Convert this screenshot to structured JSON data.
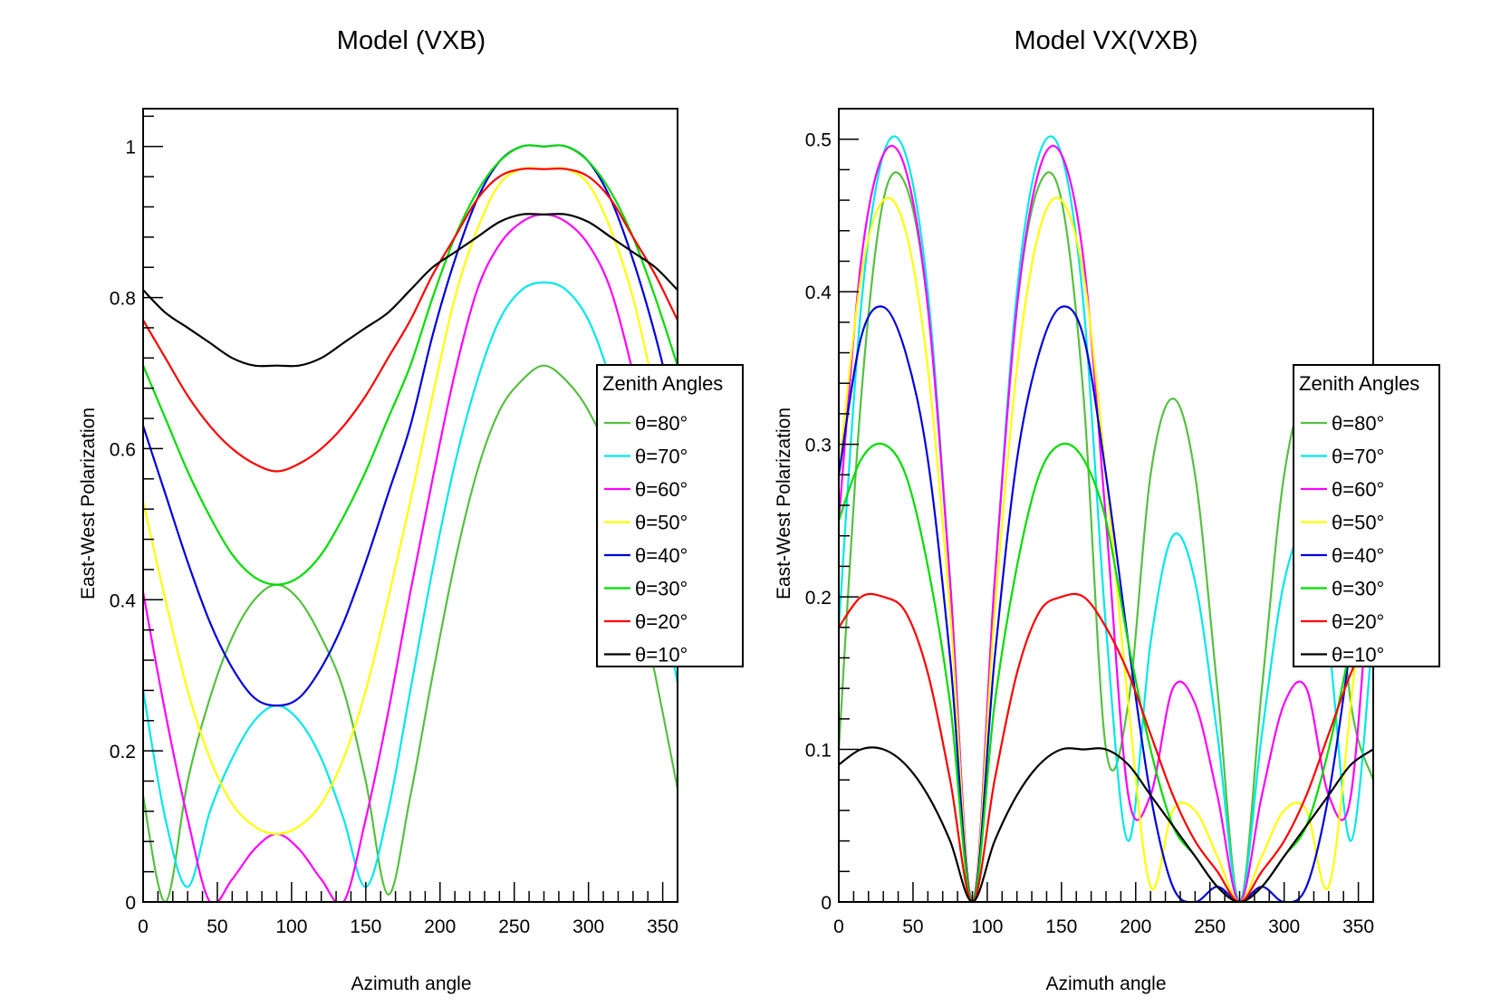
{
  "chart_data": [
    {
      "type": "line",
      "title": "Model (VXB)",
      "xlabel": "Azimuth angle",
      "ylabel": "East-West Polarization",
      "xlim": [
        0,
        360
      ],
      "ylim": [
        0,
        1.05
      ],
      "x_ticks": [
        0,
        50,
        100,
        150,
        200,
        250,
        300,
        350
      ],
      "x_tick_labels": [
        "0",
        "50",
        "100",
        "150",
        "200",
        "250",
        "300",
        "350"
      ],
      "y_ticks": [
        0,
        0.2,
        0.4,
        0.6,
        0.8,
        1.0
      ],
      "y_tick_labels": [
        "0",
        "0.2",
        "0.4",
        "0.6",
        "0.8",
        "1"
      ],
      "grid": false,
      "legend": {
        "title": "Zenith Angles",
        "placement": "right",
        "entries": [
          "θ=80°",
          "θ=70°",
          "θ=60°",
          "θ=50°",
          "θ=40°",
          "θ=30°",
          "θ=20°",
          "θ=10°"
        ]
      },
      "x": [
        0,
        15,
        30,
        45,
        60,
        75,
        90,
        105,
        120,
        135,
        150,
        165,
        180,
        195,
        210,
        225,
        240,
        255,
        270,
        285,
        300,
        315,
        330,
        345,
        360
      ],
      "series": [
        {
          "name": "θ=80°",
          "color": "#55c040",
          "values": [
            0.14,
            0.0,
            0.16,
            0.27,
            0.35,
            0.4,
            0.42,
            0.4,
            0.35,
            0.28,
            0.16,
            0.01,
            0.14,
            0.3,
            0.45,
            0.57,
            0.65,
            0.69,
            0.71,
            0.69,
            0.65,
            0.58,
            0.44,
            0.3,
            0.15
          ]
        },
        {
          "name": "θ=70°",
          "color": "#00e8e8",
          "values": [
            0.28,
            0.11,
            0.02,
            0.12,
            0.19,
            0.24,
            0.26,
            0.24,
            0.19,
            0.11,
            0.02,
            0.12,
            0.28,
            0.44,
            0.58,
            0.69,
            0.77,
            0.81,
            0.82,
            0.81,
            0.77,
            0.69,
            0.58,
            0.44,
            0.29
          ]
        },
        {
          "name": "θ=60°",
          "color": "#ff00ff",
          "values": [
            0.41,
            0.25,
            0.11,
            0.0,
            0.03,
            0.07,
            0.09,
            0.07,
            0.03,
            0.0,
            0.11,
            0.25,
            0.41,
            0.56,
            0.7,
            0.81,
            0.87,
            0.9,
            0.91,
            0.9,
            0.87,
            0.81,
            0.7,
            0.56,
            0.41
          ]
        },
        {
          "name": "θ=50°",
          "color": "#ffff00",
          "values": [
            0.53,
            0.4,
            0.28,
            0.19,
            0.13,
            0.1,
            0.09,
            0.1,
            0.13,
            0.19,
            0.28,
            0.4,
            0.53,
            0.67,
            0.8,
            0.89,
            0.95,
            0.97,
            0.97,
            0.97,
            0.95,
            0.89,
            0.8,
            0.67,
            0.53
          ]
        },
        {
          "name": "θ=40°",
          "color": "#0000dd",
          "values": [
            0.63,
            0.54,
            0.45,
            0.37,
            0.31,
            0.27,
            0.26,
            0.27,
            0.31,
            0.37,
            0.45,
            0.54,
            0.63,
            0.75,
            0.85,
            0.93,
            0.98,
            1.0,
            1.0,
            1.0,
            0.98,
            0.93,
            0.85,
            0.75,
            0.63
          ]
        },
        {
          "name": "θ=30°",
          "color": "#00dd00",
          "values": [
            0.71,
            0.64,
            0.57,
            0.51,
            0.46,
            0.43,
            0.42,
            0.43,
            0.46,
            0.51,
            0.57,
            0.64,
            0.71,
            0.8,
            0.88,
            0.94,
            0.98,
            1.0,
            1.0,
            1.0,
            0.98,
            0.94,
            0.88,
            0.8,
            0.71
          ]
        },
        {
          "name": "θ=20°",
          "color": "#ff0000",
          "values": [
            0.77,
            0.72,
            0.67,
            0.63,
            0.6,
            0.58,
            0.57,
            0.58,
            0.6,
            0.63,
            0.67,
            0.72,
            0.77,
            0.83,
            0.88,
            0.93,
            0.96,
            0.97,
            0.97,
            0.97,
            0.96,
            0.93,
            0.88,
            0.83,
            0.77
          ]
        },
        {
          "name": "θ=10°",
          "color": "#000000",
          "values": [
            0.81,
            0.78,
            0.76,
            0.74,
            0.72,
            0.71,
            0.71,
            0.71,
            0.72,
            0.74,
            0.76,
            0.78,
            0.81,
            0.84,
            0.86,
            0.88,
            0.9,
            0.91,
            0.91,
            0.91,
            0.9,
            0.88,
            0.86,
            0.84,
            0.81
          ]
        }
      ]
    },
    {
      "type": "line",
      "title": "Model VX(VXB)",
      "xlabel": "Azimuth angle",
      "ylabel": "East-West Polarization",
      "xlim": [
        0,
        360
      ],
      "ylim": [
        0,
        0.52
      ],
      "x_ticks": [
        0,
        50,
        100,
        150,
        200,
        250,
        300,
        350
      ],
      "x_tick_labels": [
        "0",
        "50",
        "100",
        "150",
        "200",
        "250",
        "300",
        "350"
      ],
      "y_ticks": [
        0,
        0.1,
        0.2,
        0.3,
        0.4,
        0.5
      ],
      "y_tick_labels": [
        "0",
        "0.1",
        "0.2",
        "0.3",
        "0.4",
        "0.5"
      ],
      "grid": false,
      "legend": {
        "title": "Zenith Angles",
        "placement": "right",
        "entries": [
          "θ=80°",
          "θ=70°",
          "θ=60°",
          "θ=50°",
          "θ=40°",
          "θ=30°",
          "θ=20°",
          "θ=10°"
        ]
      },
      "x": [
        0,
        15,
        30,
        45,
        60,
        75,
        90,
        105,
        120,
        135,
        150,
        165,
        180,
        195,
        210,
        225,
        240,
        255,
        270,
        285,
        300,
        315,
        330,
        345,
        360
      ],
      "series": [
        {
          "name": "θ=80°",
          "color": "#55c040",
          "values": [
            0.1,
            0.33,
            0.46,
            0.47,
            0.39,
            0.21,
            0.0,
            0.21,
            0.39,
            0.47,
            0.46,
            0.33,
            0.1,
            0.13,
            0.28,
            0.33,
            0.28,
            0.14,
            0.0,
            0.14,
            0.28,
            0.33,
            0.28,
            0.13,
            0.08
          ]
        },
        {
          "name": "θ=70°",
          "color": "#00e8e8",
          "values": [
            0.18,
            0.39,
            0.49,
            0.49,
            0.4,
            0.21,
            0.0,
            0.21,
            0.4,
            0.49,
            0.49,
            0.39,
            0.18,
            0.04,
            0.17,
            0.24,
            0.21,
            0.11,
            0.0,
            0.11,
            0.21,
            0.24,
            0.17,
            0.04,
            0.18
          ]
        },
        {
          "name": "θ=60°",
          "color": "#ff00ff",
          "values": [
            0.25,
            0.42,
            0.49,
            0.48,
            0.39,
            0.21,
            0.0,
            0.21,
            0.39,
            0.48,
            0.49,
            0.42,
            0.25,
            0.07,
            0.07,
            0.14,
            0.13,
            0.07,
            0.0,
            0.07,
            0.13,
            0.14,
            0.07,
            0.07,
            0.25
          ]
        },
        {
          "name": "θ=50°",
          "color": "#ffff00",
          "values": [
            0.28,
            0.41,
            0.46,
            0.44,
            0.35,
            0.19,
            0.0,
            0.19,
            0.35,
            0.44,
            0.46,
            0.41,
            0.28,
            0.13,
            0.01,
            0.06,
            0.06,
            0.03,
            0.0,
            0.03,
            0.06,
            0.06,
            0.01,
            0.13,
            0.28
          ]
        },
        {
          "name": "θ=40°",
          "color": "#0000dd",
          "values": [
            0.28,
            0.37,
            0.39,
            0.36,
            0.29,
            0.16,
            0.0,
            0.16,
            0.29,
            0.36,
            0.39,
            0.37,
            0.28,
            0.17,
            0.07,
            0.01,
            0.0,
            0.01,
            0.0,
            0.01,
            0.0,
            0.01,
            0.07,
            0.17,
            0.28
          ]
        },
        {
          "name": "θ=30°",
          "color": "#00dd00",
          "values": [
            0.25,
            0.29,
            0.3,
            0.28,
            0.22,
            0.13,
            0.0,
            0.13,
            0.22,
            0.28,
            0.3,
            0.29,
            0.25,
            0.17,
            0.1,
            0.05,
            0.03,
            0.01,
            0.0,
            0.01,
            0.03,
            0.05,
            0.1,
            0.17,
            0.25
          ]
        },
        {
          "name": "θ=20°",
          "color": "#ff0000",
          "values": [
            0.18,
            0.2,
            0.2,
            0.19,
            0.15,
            0.08,
            0.0,
            0.08,
            0.15,
            0.19,
            0.2,
            0.2,
            0.18,
            0.15,
            0.11,
            0.07,
            0.04,
            0.02,
            0.0,
            0.02,
            0.04,
            0.07,
            0.11,
            0.15,
            0.18
          ]
        },
        {
          "name": "θ=10°",
          "color": "#000000",
          "values": [
            0.09,
            0.1,
            0.1,
            0.09,
            0.07,
            0.04,
            0.0,
            0.04,
            0.07,
            0.09,
            0.1,
            0.1,
            0.1,
            0.09,
            0.07,
            0.05,
            0.03,
            0.01,
            0.0,
            0.01,
            0.03,
            0.05,
            0.07,
            0.09,
            0.1
          ]
        }
      ]
    }
  ]
}
